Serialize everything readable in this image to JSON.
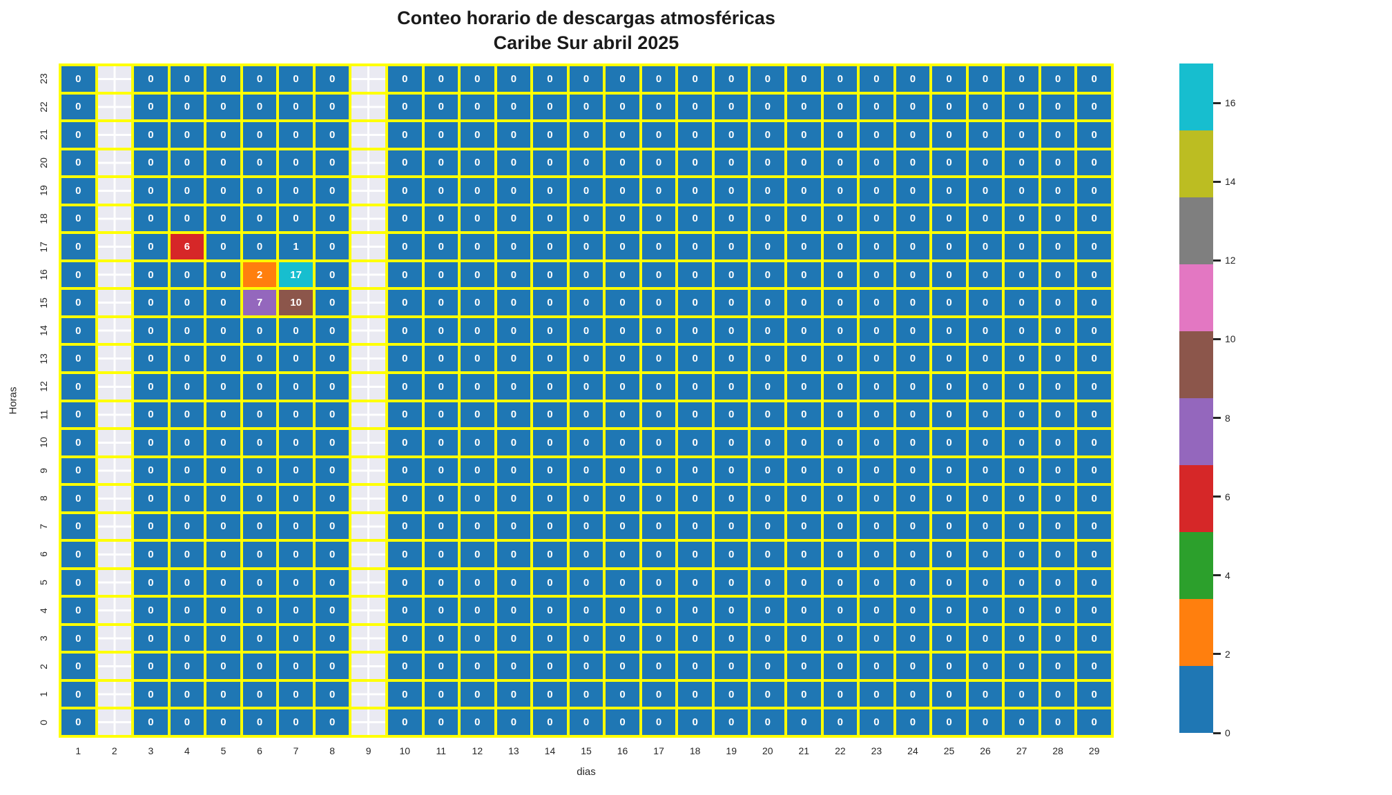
{
  "chart_data": {
    "type": "heatmap",
    "title": "Conteo horario de descargas atmosféricas",
    "subtitle": "Caribe Sur abril 2025",
    "xlabel": "dias",
    "ylabel": "Horas",
    "days": [
      1,
      2,
      3,
      4,
      5,
      6,
      7,
      8,
      9,
      10,
      11,
      12,
      13,
      14,
      15,
      16,
      17,
      18,
      19,
      20,
      21,
      22,
      23,
      24,
      25,
      26,
      27,
      28,
      29
    ],
    "hours": [
      0,
      1,
      2,
      3,
      4,
      5,
      6,
      7,
      8,
      9,
      10,
      11,
      12,
      13,
      14,
      15,
      16,
      17,
      18,
      19,
      20,
      21,
      22,
      23
    ],
    "missing_days": [
      2,
      9
    ],
    "default_value": 0,
    "nonzero_cells": [
      {
        "day": 4,
        "hour": 17,
        "value": 6
      },
      {
        "day": 7,
        "hour": 17,
        "value": 1
      },
      {
        "day": 6,
        "hour": 16,
        "value": 2
      },
      {
        "day": 7,
        "hour": 16,
        "value": 17
      },
      {
        "day": 6,
        "hour": 15,
        "value": 7
      },
      {
        "day": 7,
        "hour": 15,
        "value": 10
      }
    ],
    "colormap": {
      "vmin": 0,
      "vmax": 17,
      "palette": [
        "#1f77b4",
        "#ff7f0e",
        "#2ca02c",
        "#d62728",
        "#9467bd",
        "#8c564b",
        "#e377c2",
        "#7f7f7f",
        "#bcbd22",
        "#17becf"
      ]
    },
    "colorbar": {
      "ticks": [
        0,
        2,
        4,
        6,
        8,
        10,
        12,
        14,
        16
      ]
    },
    "style": {
      "cell_border": "#ffff00",
      "missing_bg": "#eaeaf2",
      "missing_line": "#ffffff",
      "cell_text": "#ffffff",
      "tick_text": "#262626",
      "title_text": "#1a1a1a"
    },
    "legend_position": "right",
    "grid": "off"
  }
}
